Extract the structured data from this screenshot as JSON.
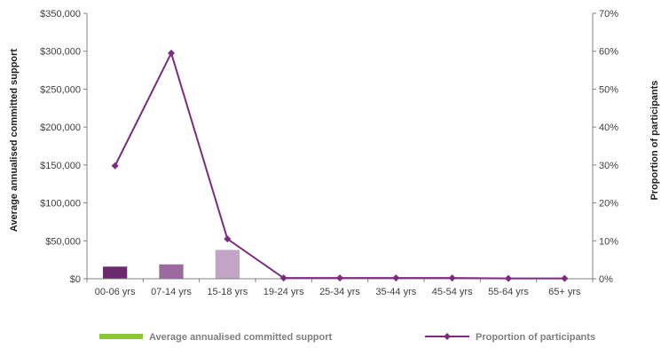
{
  "chart_data": {
    "type": "bar",
    "categories": [
      "00-06 yrs",
      "07-14 yrs",
      "15-18 yrs",
      "19-24 yrs",
      "25-34 yrs",
      "35-44 yrs",
      "45-54 yrs",
      "55-64 yrs",
      "65+ yrs"
    ],
    "ylabel": "Average annualised committed support",
    "y2label": "Proportion of participants",
    "ylim": [
      0,
      350000
    ],
    "y2lim": [
      0,
      70
    ],
    "y_ticks": [
      "$0",
      "$50,000",
      "$100,000",
      "$150,000",
      "$200,000",
      "$250,000",
      "$300,000",
      "$350,000"
    ],
    "y2_ticks": [
      "0%",
      "10%",
      "20%",
      "30%",
      "40%",
      "50%",
      "60%",
      "70%"
    ],
    "series": [
      {
        "name": "Average annualised committed support",
        "type": "bar",
        "axis": "left",
        "values": [
          16000,
          19000,
          38000,
          0,
          0,
          0,
          0,
          0,
          0
        ],
        "bar_colors": [
          "#6a2a6b",
          "#9b6a9f",
          "#c3a4c6",
          "#c3a4c6",
          "#c3a4c6",
          "#c3a4c6",
          "#c3a4c6",
          "#c3a4c6",
          "#c3a4c6"
        ],
        "legend_color": "#8cc63f"
      },
      {
        "name": "Proportion of participants",
        "type": "line",
        "axis": "right",
        "values": [
          29.8,
          59.5,
          10.5,
          0.2,
          0.2,
          0.2,
          0.2,
          0.1,
          0.1
        ],
        "color": "#7b2c7d"
      }
    ],
    "legend_position": "bottom",
    "grid": false
  }
}
